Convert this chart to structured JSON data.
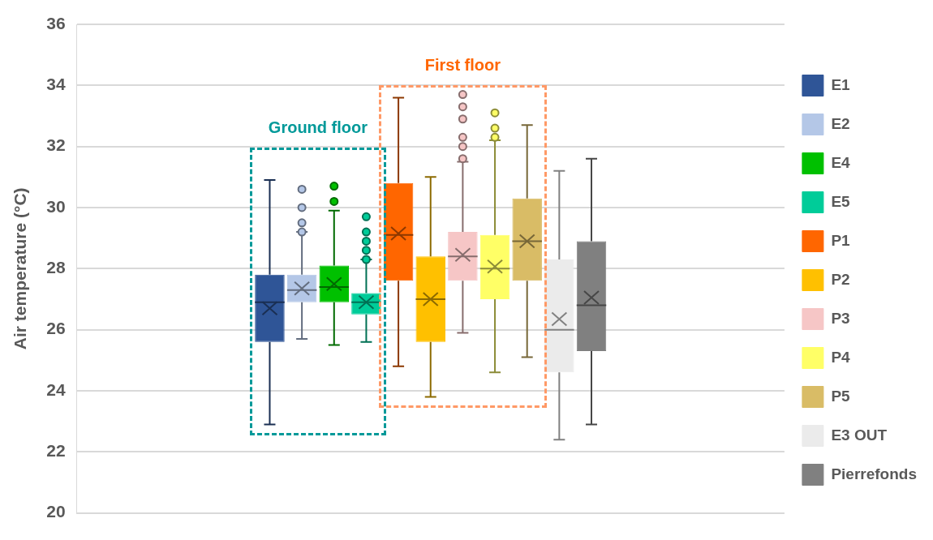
{
  "chart_data": {
    "type": "box",
    "ylabel": "Air temperature (°C)",
    "categories": [
      null
    ],
    "ylim": [
      20,
      36
    ],
    "yticks": [
      20,
      22,
      24,
      26,
      28,
      30,
      32,
      34,
      36
    ],
    "grid": "y",
    "legend": "right",
    "annotations": [
      "Ground floor",
      "First floor"
    ],
    "series": [
      {
        "name": "E1",
        "color": "#2f5597",
        "boxes": [
          {
            "low": 22.9,
            "q1": 25.6,
            "median": 26.9,
            "q3": 27.8,
            "high": 30.9,
            "mean": 26.7
          }
        ]
      },
      {
        "name": "E2",
        "color": "#b4c7e7",
        "boxes": [
          {
            "low": 25.7,
            "q1": 26.9,
            "median": 27.3,
            "q3": 27.8,
            "high": 29.2,
            "mean": 27.35,
            "outliers": [
              29.2,
              29.5,
              30.0,
              30.6
            ]
          }
        ]
      },
      {
        "name": "E4",
        "color": "#00c000",
        "boxes": [
          {
            "low": 25.5,
            "q1": 26.9,
            "median": 27.4,
            "q3": 28.1,
            "high": 29.9,
            "mean": 27.5,
            "outliers": [
              30.2,
              30.7
            ]
          }
        ]
      },
      {
        "name": "E5",
        "color": "#00cc99",
        "boxes": [
          {
            "low": 25.6,
            "q1": 26.5,
            "median": 26.9,
            "q3": 27.2,
            "high": 28.3,
            "mean": 26.9,
            "outliers": [
              28.3,
              28.6,
              28.9,
              29.2,
              29.7
            ]
          }
        ]
      },
      {
        "name": "P1",
        "color": "#ff6600",
        "boxes": [
          {
            "low": 24.8,
            "q1": 27.6,
            "median": 29.1,
            "q3": 30.8,
            "high": 33.6,
            "mean": 29.15
          }
        ]
      },
      {
        "name": "P2",
        "color": "#ffc000",
        "boxes": [
          {
            "low": 23.8,
            "q1": 25.6,
            "median": 27.0,
            "q3": 28.4,
            "high": 31.0,
            "mean": 27.0
          }
        ]
      },
      {
        "name": "P3",
        "color": "#f6c6c6",
        "boxes": [
          {
            "low": 25.9,
            "q1": 27.6,
            "median": 28.4,
            "q3": 29.2,
            "high": 31.5,
            "mean": 28.45,
            "outliers": [
              31.6,
              32.0,
              32.3,
              32.9,
              33.3,
              33.7
            ]
          }
        ]
      },
      {
        "name": "P4",
        "color": "#ffff66",
        "boxes": [
          {
            "low": 24.6,
            "q1": 27.0,
            "median": 28.0,
            "q3": 29.1,
            "high": 32.2,
            "mean": 28.07,
            "outliers": [
              32.3,
              32.6,
              33.1
            ]
          }
        ]
      },
      {
        "name": "P5",
        "color": "#d9bc66",
        "boxes": [
          {
            "low": 25.1,
            "q1": 27.6,
            "median": 28.9,
            "q3": 30.3,
            "high": 32.7,
            "mean": 28.9
          }
        ]
      },
      {
        "name": "E3 OUT",
        "color": "#ebebeb",
        "boxes": [
          {
            "low": 22.4,
            "q1": 24.6,
            "median": 26.0,
            "q3": 28.3,
            "high": 31.2,
            "mean": 26.35
          }
        ]
      },
      {
        "name": "Pierrefonds",
        "color": "#808080",
        "boxes": [
          {
            "low": 22.9,
            "q1": 25.3,
            "median": 26.8,
            "q3": 28.9,
            "high": 31.6,
            "mean": 27.05
          }
        ]
      }
    ]
  }
}
